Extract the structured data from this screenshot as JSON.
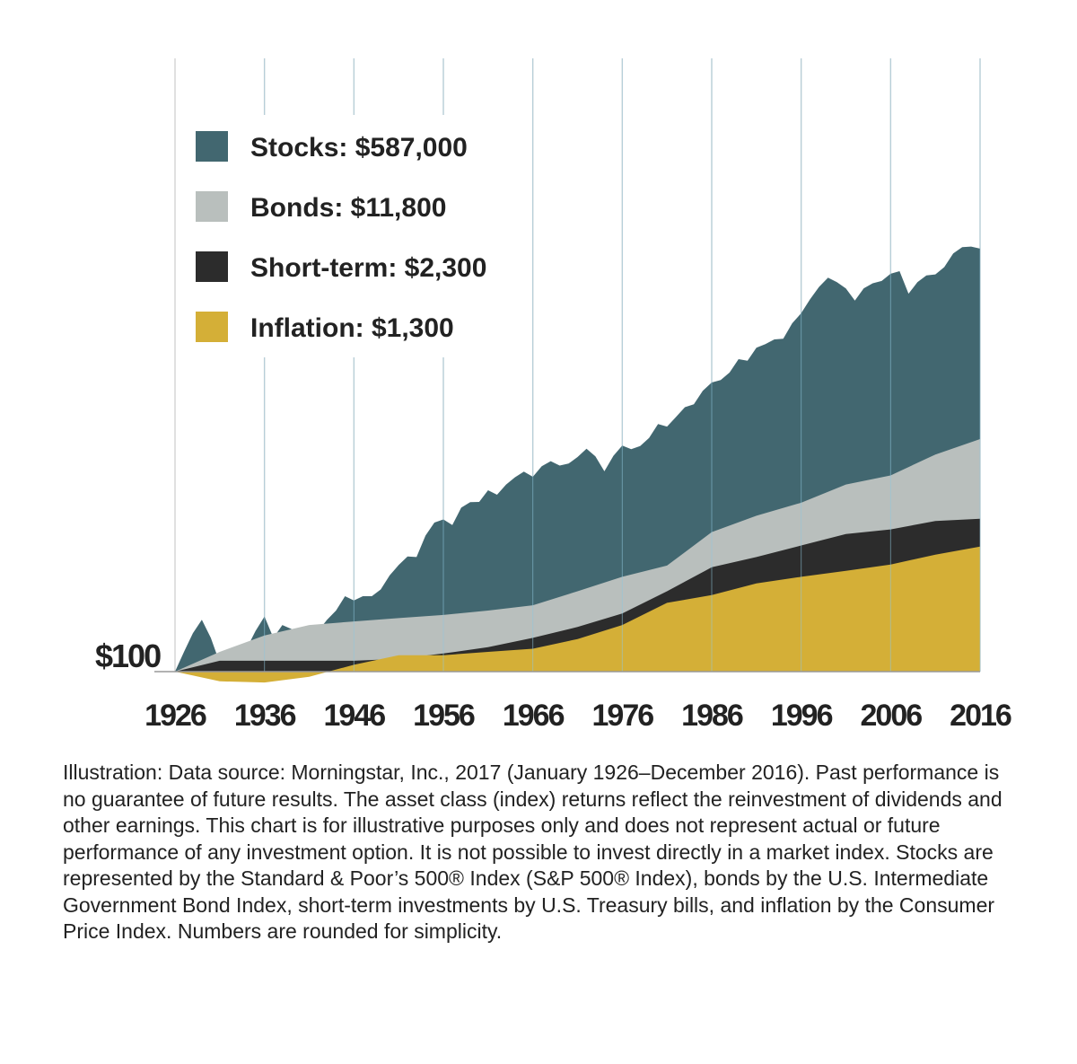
{
  "chart_data": {
    "type": "area",
    "title": "",
    "xlabel": "",
    "ylabel": "",
    "scale": "log",
    "grid": "vertical",
    "legend_position": "top-left",
    "start_value_label": "$100",
    "x_ticks": [
      "1926",
      "1936",
      "1946",
      "1956",
      "1966",
      "1976",
      "1986",
      "1996",
      "2006",
      "2016"
    ],
    "series": [
      {
        "name": "Stocks: $587,000",
        "color": "#426770",
        "x": [
          1926,
          1927,
          1928,
          1929,
          1930,
          1931,
          1932,
          1933,
          1934,
          1935,
          1936,
          1937,
          1938,
          1939,
          1940,
          1941,
          1942,
          1943,
          1944,
          1945,
          1946,
          1947,
          1948,
          1949,
          1950,
          1951,
          1952,
          1953,
          1954,
          1955,
          1956,
          1957,
          1958,
          1959,
          1960,
          1961,
          1962,
          1963,
          1964,
          1965,
          1966,
          1967,
          1968,
          1969,
          1970,
          1971,
          1972,
          1973,
          1974,
          1975,
          1976,
          1977,
          1978,
          1979,
          1980,
          1981,
          1982,
          1983,
          1984,
          1985,
          1986,
          1987,
          1988,
          1989,
          1990,
          1991,
          1992,
          1993,
          1994,
          1995,
          1996,
          1997,
          1998,
          1999,
          2000,
          2001,
          2002,
          2003,
          2004,
          2005,
          2006,
          2007,
          2008,
          2009,
          2010,
          2011,
          2012,
          2013,
          2014,
          2015,
          2016
        ],
        "values": [
          100,
          150,
          220,
          290,
          200,
          120,
          110,
          150,
          160,
          230,
          310,
          200,
          260,
          240,
          210,
          190,
          230,
          290,
          350,
          470,
          430,
          470,
          470,
          540,
          720,
          890,
          1060,
          1050,
          1630,
          2130,
          2270,
          2020,
          2890,
          3230,
          3250,
          4130,
          3770,
          4630,
          5390,
          6060,
          5450,
          6750,
          7500,
          6860,
          7140,
          8160,
          9700,
          8280,
          6090,
          8350,
          10340,
          9600,
          10230,
          12100,
          16040,
          15250,
          18520,
          22700,
          24120,
          31760,
          37670,
          39640,
          46220,
          60860,
          58970,
          76920,
          82800,
          91140,
          92340,
          127030,
          156190,
          208290,
          267830,
          324190,
          294680,
          259650,
          202270,
          260280,
          288630,
          302800,
          350620,
          369880,
          233030,
          294700,
          339090,
          346210,
          401630,
          531730,
          604530,
          612860,
          586750
        ]
      },
      {
        "name": "Bonds: $11,800",
        "color": "#b9bfbd",
        "x": [
          1926,
          1931,
          1936,
          1941,
          1946,
          1951,
          1956,
          1961,
          1966,
          1971,
          1976,
          1981,
          1986,
          1991,
          1996,
          2001,
          2006,
          2011,
          2016
        ],
        "values": [
          100,
          150,
          210,
          260,
          280,
          300,
          320,
          350,
          390,
          520,
          700,
          880,
          1750,
          2450,
          3200,
          4650,
          5600,
          8600,
          11800
        ]
      },
      {
        "name": "Short-term: $2,300",
        "color": "#2c2c2c",
        "x": [
          1926,
          1931,
          1936,
          1941,
          1946,
          1951,
          1956,
          1961,
          1966,
          1971,
          1976,
          1981,
          1986,
          1991,
          1996,
          2001,
          2006,
          2011,
          2016
        ],
        "values": [
          100,
          125,
          125,
          125,
          125,
          130,
          145,
          165,
          200,
          250,
          330,
          520,
          850,
          1050,
          1330,
          1680,
          1850,
          2200,
          2300
        ]
      },
      {
        "name": "Inflation: $1,300",
        "color": "#d4af37",
        "x": [
          1926,
          1931,
          1936,
          1941,
          1946,
          1951,
          1956,
          1961,
          1966,
          1971,
          1976,
          1981,
          1986,
          1991,
          1996,
          2001,
          2006,
          2011,
          2016
        ],
        "values": [
          100,
          82,
          80,
          90,
          115,
          140,
          140,
          150,
          160,
          195,
          260,
          410,
          480,
          610,
          700,
          790,
          900,
          1100,
          1300
        ]
      }
    ]
  },
  "caption": "Illustration: Data source: Morningstar, Inc., 2017 (January 1926–December 2016). Past performance is no guarantee of future results. The asset class (index) returns reflect the reinvestment of dividends and other earnings. This chart is for illustrative purposes only and does not represent actual or future performance of any investment option. It is not possible to invest directly in a market index. Stocks are represented by the Standard & Poor’s 500® Index (S&P 500® Index), bonds by the U.S. Intermediate Government Bond Index, short-term investments by U.S. Treasury bills, and inflation by the Consumer Price Index. Numbers are rounded for simplicity."
}
